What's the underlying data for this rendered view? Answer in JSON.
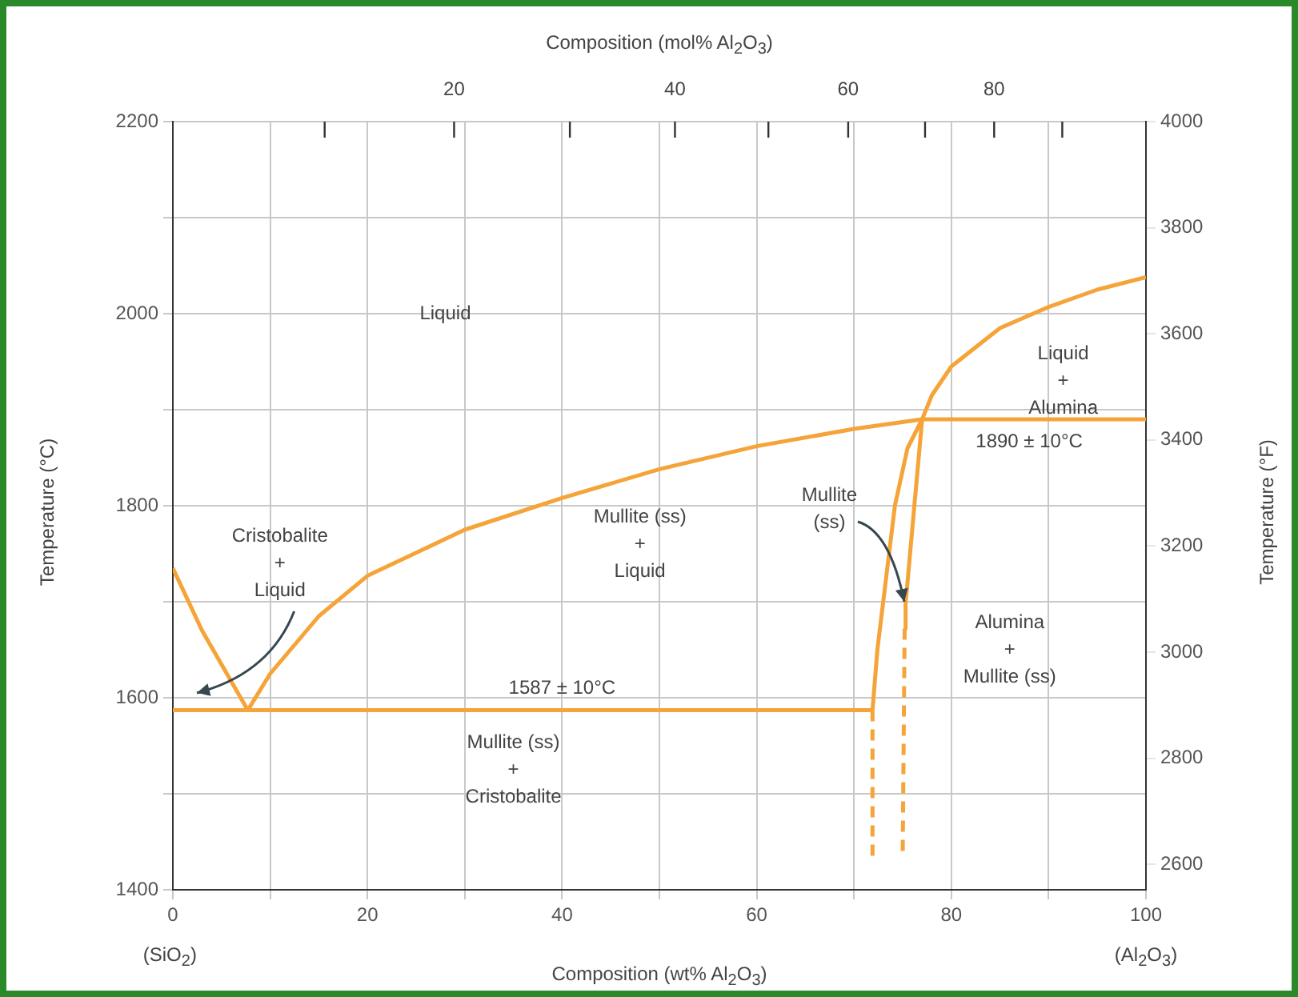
{
  "chart_data": {
    "type": "line",
    "xlabel": "Composition (wt% Al$_{2}$O$_{3}$)",
    "x2label": "Composition (mol% Al$_{2}$O$_{3}$)",
    "ylabel": "Temperature (°C)",
    "y2label": "Temperature (°F)",
    "xlim": [
      0,
      100
    ],
    "xticks": [
      0,
      {
        "value": 10,
        "label": null
      },
      20,
      {
        "value": 30,
        "label": null
      },
      40,
      {
        "value": 50,
        "label": null
      },
      60,
      {
        "value": 70,
        "label": null
      },
      80,
      {
        "value": 90,
        "label": null
      },
      100
    ],
    "ylim": [
      1400,
      2200
    ],
    "yticks": [
      1400,
      {
        "value": 1500,
        "label": null
      },
      1600,
      {
        "value": 1700,
        "label": null
      },
      1800,
      {
        "value": 1900,
        "label": null
      },
      2000,
      {
        "value": 2100,
        "label": null
      },
      2200
    ],
    "y2lim": [
      2552,
      4000
    ],
    "y2ticks": [
      2600,
      2800,
      3000,
      3200,
      3400,
      3600,
      3800,
      4000
    ],
    "grid": true,
    "marker": "none",
    "series": [
      {
        "color": "#f5a43a",
        "x": [
          0,
          3,
          7.7
        ],
        "values": [
          1735,
          1670,
          1587
        ]
      },
      {
        "color": "#f5a43a",
        "x": [
          7.7,
          10,
          15,
          20,
          30,
          40,
          50,
          60,
          70,
          77,
          100
        ],
        "values": [
          1587,
          1625,
          1685,
          1727,
          1775,
          1808,
          1838,
          1862,
          1880,
          1890,
          1890
        ]
      },
      {
        "color": "#f5a43a",
        "x": [
          75.2,
          75.3,
          76.2,
          77,
          78,
          80,
          85,
          90,
          95,
          100
        ],
        "values": [
          1672,
          1698,
          1800,
          1890,
          1915,
          1945,
          1985,
          2007,
          2025,
          2038
        ]
      },
      {
        "color": "#f5a43a",
        "x": [
          0,
          71.9
        ],
        "values": [
          1587,
          1587
        ]
      },
      {
        "color": "#f5a43a",
        "x": [
          71.9,
          72.4,
          73,
          74.2,
          75.5,
          77
        ],
        "values": [
          1587,
          1650,
          1700,
          1800,
          1860,
          1890
        ]
      },
      {
        "color": "#f5a43a",
        "line_style": "dashed",
        "x": [
          71.9,
          71.9
        ],
        "values": [
          1587,
          1435
        ]
      },
      {
        "color": "#f5a43a",
        "line_style": "dashed",
        "x": [
          75.2,
          75
        ],
        "values": [
          1672,
          1435
        ]
      }
    ],
    "annotations": [
      "Liquid",
      "Cristobalite\n+\nLiquid",
      "Mullite (ss)\n+\nLiquid",
      {
        "text": "Mullite\n(ss)",
        "x": 75.2,
        "y": 1700
      },
      "Liquid\n+\nAlumina",
      {
        "text": "1890 ± 10°C",
        "x": 88,
        "y": 1890
      },
      "Alumina\n+\nMullite (ss)",
      {
        "text": "1587 ± 10°C",
        "x": 40,
        "y": 1587
      },
      "Mullite (ss)\n+\nCristobalite",
      "(SiO$_{2}$)",
      "(Al$_{2}$O$_{3}$)",
      "20",
      "40",
      "60",
      "80"
    ]
  }
}
